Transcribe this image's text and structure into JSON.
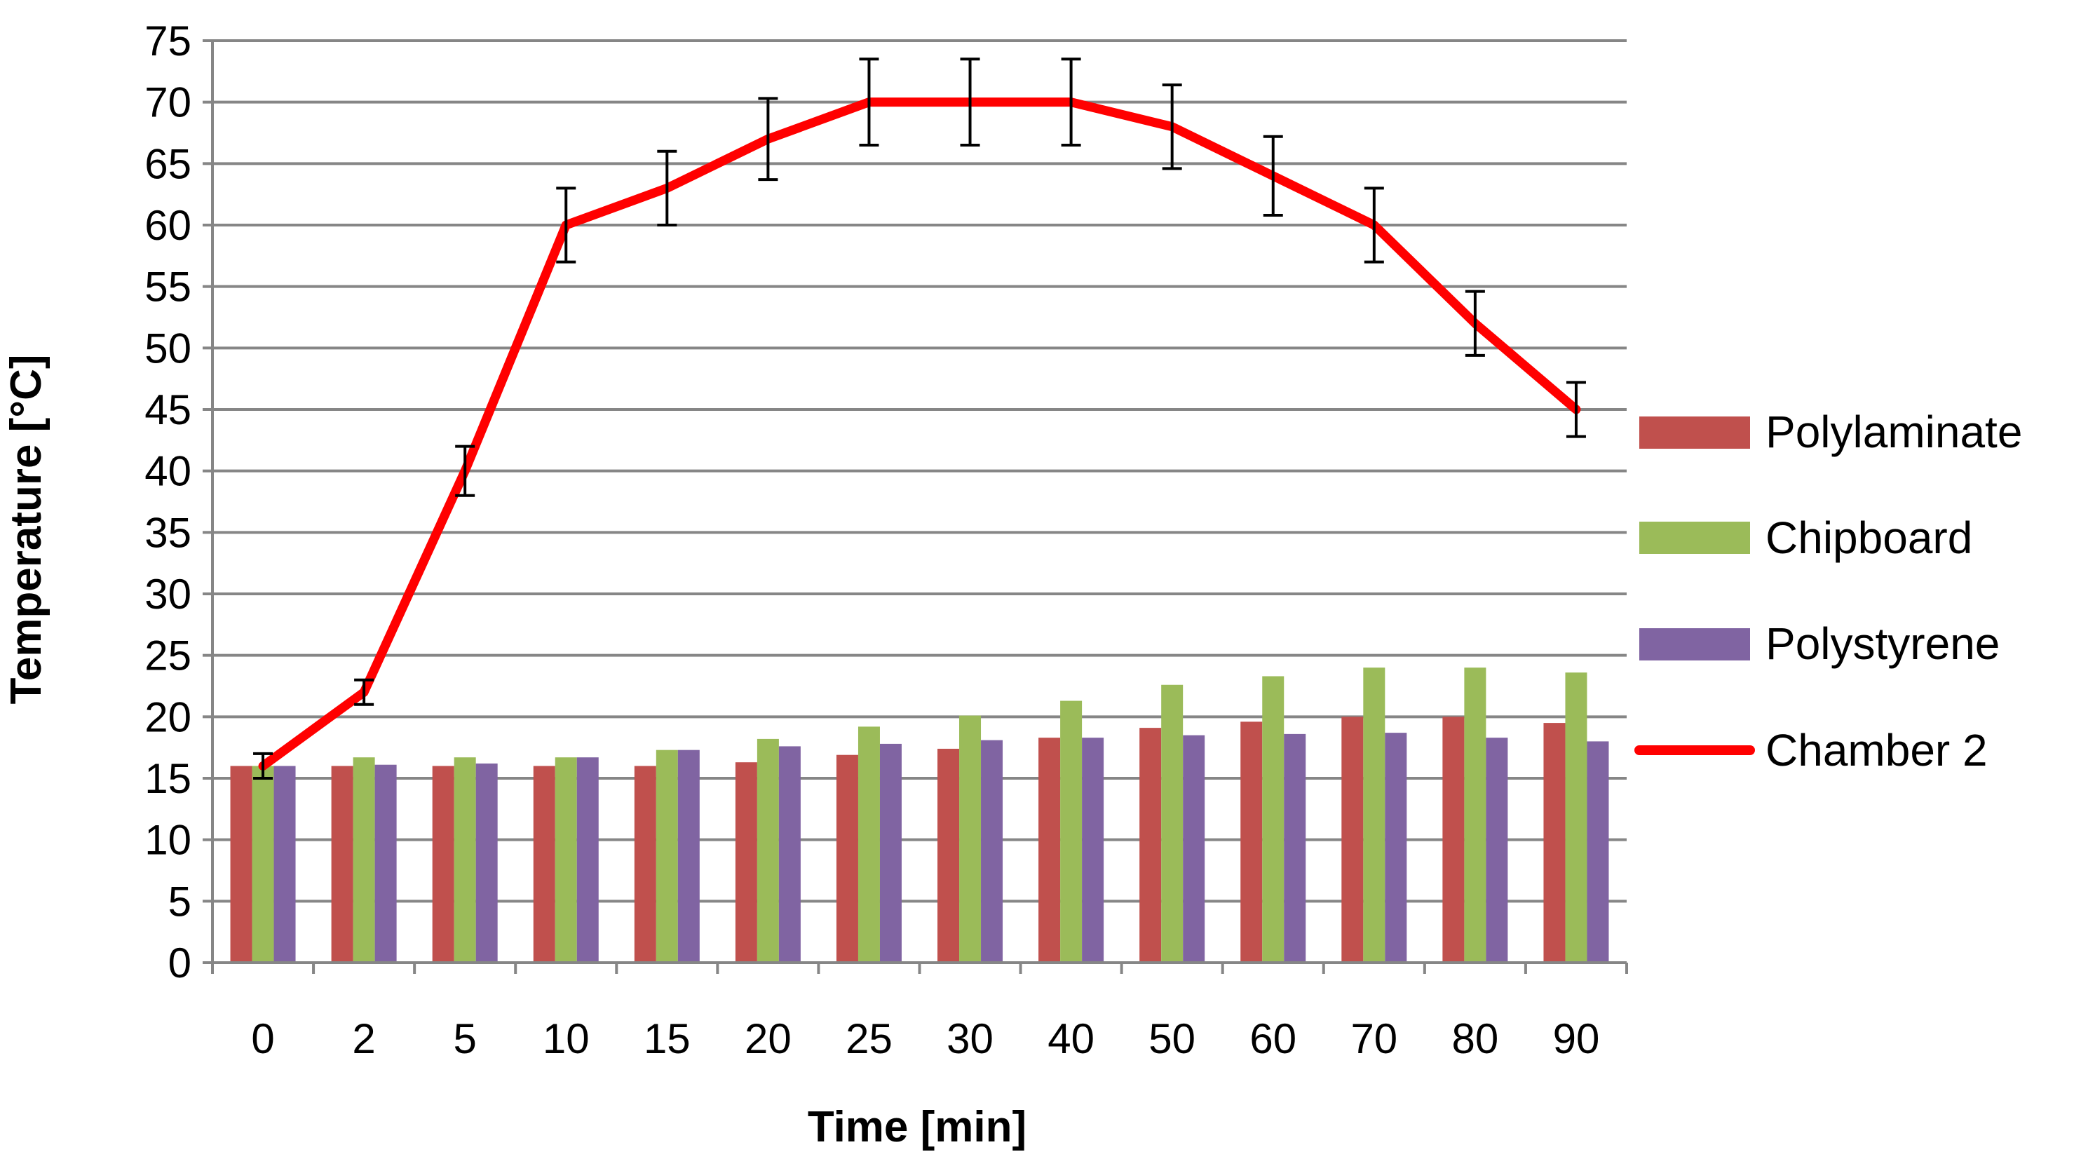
{
  "chart_data": {
    "type": "bar",
    "title": "",
    "xlabel": "Time [min]",
    "ylabel": "Temperature [°C]",
    "ylim": [
      0,
      75
    ],
    "ytick_step": 5,
    "yticks": [
      "0",
      "5",
      "10",
      "15",
      "20",
      "25",
      "30",
      "35",
      "40",
      "45",
      "50",
      "55",
      "60",
      "65",
      "70",
      "75"
    ],
    "grid": true,
    "legend_position": "right",
    "categories": [
      "0",
      "2",
      "5",
      "10",
      "15",
      "20",
      "25",
      "30",
      "40",
      "50",
      "60",
      "70",
      "80",
      "90"
    ],
    "series": [
      {
        "name": "Polylaminate",
        "kind": "bar",
        "color": "#C0504D",
        "values": [
          16,
          16,
          16,
          16,
          16,
          16.3,
          16.9,
          17.4,
          18.3,
          19.1,
          19.6,
          20,
          20,
          19.5
        ]
      },
      {
        "name": "Chipboard",
        "kind": "bar",
        "color": "#9BBB59",
        "values": [
          16,
          16.7,
          16.7,
          16.7,
          17.3,
          18.2,
          19.2,
          20.1,
          21.3,
          22.6,
          23.3,
          24,
          24,
          23.6
        ]
      },
      {
        "name": "Polystyrene",
        "kind": "bar",
        "color": "#8064A2",
        "values": [
          16,
          16.1,
          16.2,
          16.7,
          17.3,
          17.6,
          17.8,
          18.1,
          18.3,
          18.5,
          18.6,
          18.7,
          18.3,
          18
        ]
      },
      {
        "name": "Chamber 2",
        "kind": "line",
        "color": "#FF0000",
        "values": [
          16,
          22,
          40,
          60,
          63,
          67,
          70,
          70,
          70,
          68,
          64,
          60,
          52,
          45
        ],
        "error": [
          1,
          1,
          2,
          3,
          3,
          3.3,
          3.5,
          3.5,
          3.5,
          3.4,
          3.2,
          3,
          2.6,
          2.2
        ]
      }
    ]
  }
}
